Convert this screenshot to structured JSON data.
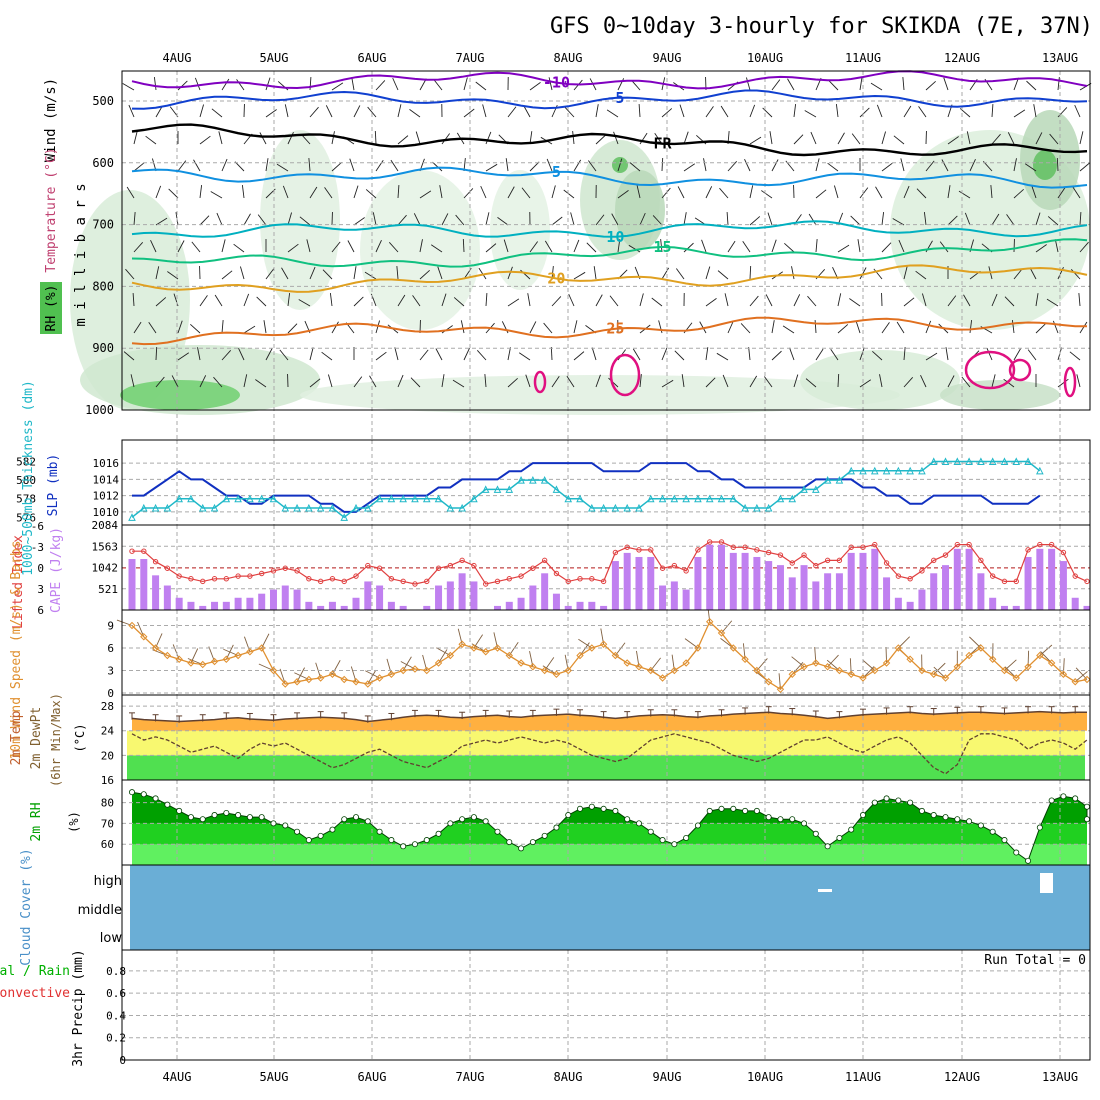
{
  "title": "GFS 0~10day 3-hourly for SKIKDA (7E, 37N)",
  "date_labels": [
    "4AUG",
    "5AUG",
    "6AUG",
    "7AUG",
    "8AUG",
    "9AUG",
    "10AUG",
    "11AUG",
    "12AUG",
    "13AUG"
  ],
  "colors": {
    "purple": "#8000c0",
    "blue": "#1040d0",
    "ltblue": "#1090e0",
    "cyan": "#00b0c0",
    "teal": "#10c080",
    "gold": "#e0a020",
    "orange": "#e07020",
    "magenta": "#e01080",
    "slp": "#1030c0",
    "thick": "#20b8c8",
    "cape": "#c080f0",
    "li": "#e04040",
    "wind": "#e09030",
    "temp": "#ffb040",
    "dew": "#f8f870",
    "green": "#50e050",
    "rh_dark": "#00a000",
    "rh_mid": "#20d020",
    "rh_light": "#60f060",
    "cloud": "#6aaed6"
  },
  "chart_data": [
    {
      "type": "contour",
      "panel": "upper_air",
      "ylabel": "m i l l i b a r s",
      "legend": [
        "Wind (m/s)",
        "Temperature (°C)",
        "RH (%)"
      ],
      "y_ticks": [
        500,
        600,
        700,
        800,
        900,
        1000
      ],
      "temperature_contours": [
        {
          "value": "-10",
          "label": "-10",
          "color": "purple",
          "level_start": 468,
          "level_end": 465
        },
        {
          "value": "-5",
          "label": "-5",
          "color": "blue",
          "level_start": 500,
          "level_end": 495
        },
        {
          "value": "FR",
          "label": "FR",
          "color": "black",
          "level_start": 550,
          "level_end": 585
        },
        {
          "value": "-5b",
          "label": "5",
          "color": "ltblue",
          "level_start": 615,
          "level_end": 632
        },
        {
          "value": "10",
          "label": "10",
          "color": "cyan",
          "level_start": 712,
          "level_end": 705
        },
        {
          "value": "15",
          "label": "15",
          "color": "teal",
          "level_start": 765,
          "level_end": 737
        },
        {
          "value": "20",
          "label": "20",
          "color": "gold",
          "level_start": 800,
          "level_end": 775
        },
        {
          "value": "25",
          "label": "25",
          "color": "orange",
          "level_start": 880,
          "level_end": 855
        }
      ],
      "contour_labels": [
        "-10",
        "5",
        "FR",
        "5",
        "10",
        "15",
        "20",
        "20",
        "25",
        "-5",
        "5",
        "10",
        "15",
        "20"
      ]
    },
    {
      "type": "line",
      "panel": "slp_thickness",
      "series": [
        {
          "name": "SLP (mb)",
          "y_ticks": [
            1010,
            1012,
            1014,
            1016
          ],
          "values": [
            1012,
            1012,
            1013,
            1014,
            1015,
            1014,
            1014,
            1013,
            1012,
            1012,
            1011,
            1011,
            1012,
            1012,
            1012,
            1012,
            1011,
            1011,
            1010,
            1010,
            1011,
            1012,
            1012,
            1012,
            1012,
            1012,
            1013,
            1013,
            1014,
            1014,
            1014,
            1014,
            1015,
            1015,
            1016,
            1016,
            1016,
            1016,
            1016,
            1016,
            1015,
            1015,
            1015,
            1015,
            1016,
            1016,
            1016,
            1016,
            1015,
            1015,
            1014,
            1014,
            1013,
            1013,
            1013,
            1013,
            1013,
            1013,
            1014,
            1014,
            1014,
            1014,
            1013,
            1013,
            1012,
            1012,
            1011,
            1011,
            1012,
            1012,
            1012,
            1012,
            1012,
            1011,
            1011,
            1011,
            1011,
            1012
          ]
        },
        {
          "name": "1000~500mb Thickness (dm)",
          "y_ticks": [
            576,
            578,
            580,
            582
          ],
          "values": [
            576,
            577,
            577,
            577,
            578,
            578,
            577,
            577,
            578,
            578,
            578,
            578,
            578,
            577,
            577,
            577,
            577,
            577,
            576,
            577,
            577,
            578,
            578,
            578,
            578,
            578,
            578,
            577,
            577,
            578,
            579,
            579,
            579,
            580,
            580,
            580,
            579,
            578,
            578,
            577,
            577,
            577,
            577,
            577,
            578,
            578,
            578,
            578,
            578,
            578,
            578,
            578,
            577,
            577,
            577,
            578,
            578,
            579,
            579,
            580,
            580,
            581,
            581,
            581,
            581,
            581,
            581,
            581,
            582,
            582,
            582,
            582,
            582,
            582,
            582,
            582,
            582,
            581
          ]
        }
      ]
    },
    {
      "type": "bar",
      "panel": "cape_li",
      "series": [
        {
          "name": "CAPE (J/kg)",
          "y_ticks": [
            521,
            1042,
            1563,
            2084
          ],
          "values": [
            1250,
            1250,
            850,
            600,
            300,
            200,
            100,
            200,
            200,
            300,
            300,
            400,
            500,
            600,
            500,
            200,
            100,
            200,
            100,
            300,
            700,
            600,
            200,
            100,
            0,
            100,
            600,
            700,
            900,
            700,
            0,
            100,
            200,
            300,
            600,
            900,
            400,
            100,
            200,
            200,
            100,
            1200,
            1400,
            1300,
            1300,
            600,
            700,
            500,
            1300,
            1600,
            1600,
            1400,
            1400,
            1300,
            1200,
            1100,
            800,
            1100,
            700,
            900,
            900,
            1400,
            1400,
            1500,
            800,
            300,
            200,
            500,
            900,
            1100,
            1500,
            1500,
            900,
            300,
            100,
            100,
            1300,
            1500,
            1500,
            1200,
            300,
            100
          ]
        },
        {
          "name": "Lifted Index",
          "y_ticks": [
            -6,
            -3,
            0,
            3,
            6
          ],
          "values": []
        }
      ]
    },
    {
      "type": "line",
      "panel": "wind",
      "ylabel": "10m Wind Speed (m/s) & Barbs",
      "y_ticks": [
        0,
        3,
        6,
        9
      ],
      "values": [
        9.0,
        7.5,
        6.0,
        5.0,
        4.5,
        4.0,
        3.8,
        4.2,
        4.5,
        5.0,
        5.5,
        6.0,
        3.0,
        1.2,
        1.5,
        1.8,
        2.0,
        2.5,
        1.8,
        1.5,
        1.2,
        2.0,
        2.5,
        3.0,
        3.2,
        3.0,
        4.0,
        5.0,
        6.5,
        6.0,
        5.5,
        6.0,
        5.0,
        4.0,
        3.5,
        3.0,
        2.5,
        3.0,
        5.0,
        6.0,
        6.5,
        5.0,
        4.0,
        3.5,
        3.0,
        2.0,
        3.0,
        4.0,
        6.0,
        9.5,
        8.0,
        6.0,
        4.5,
        3.0,
        1.5,
        0.5,
        2.5,
        3.5,
        4.0,
        3.5,
        3.0,
        2.5,
        2.0,
        3.0,
        4.0,
        6.0,
        4.5,
        3.0,
        2.5,
        2.0,
        3.5,
        5.0,
        6.0,
        4.5,
        3.0,
        2.0,
        3.5,
        5.0,
        4.0,
        2.5,
        1.5,
        1.8
      ]
    },
    {
      "type": "area",
      "panel": "temp",
      "ylabel": "(°C)",
      "legend": [
        "2m Temp",
        "2m DewPt",
        "(6hr Min/Max)"
      ],
      "y_ticks": [
        16,
        20,
        24,
        28
      ],
      "temp": [
        26.0,
        25.8,
        25.7,
        25.6,
        25.5,
        25.6,
        25.7,
        25.8,
        26.0,
        26.1,
        25.9,
        25.8,
        25.7,
        25.9,
        26.0,
        26.1,
        26.2,
        26.1,
        26.0,
        25.8,
        25.5,
        25.7,
        25.9,
        26.2,
        26.4,
        26.5,
        26.4,
        26.2,
        26.1,
        26.3,
        26.4,
        26.5,
        26.3,
        26.2,
        26.4,
        26.5,
        26.6,
        26.7,
        26.5,
        26.4,
        26.2,
        26.0,
        26.2,
        26.4,
        26.5,
        26.6,
        26.5,
        26.3,
        26.2,
        26.4,
        26.5,
        26.7,
        26.8,
        26.9,
        27.0,
        26.8,
        26.7,
        26.5,
        26.3,
        26.0,
        26.2,
        26.4,
        26.6,
        26.7,
        26.8,
        26.9,
        27.0,
        26.8,
        26.7,
        26.8,
        26.9,
        27.0,
        27.0,
        26.9,
        26.8,
        26.9,
        27.0,
        27.1,
        27.0,
        26.9,
        27.0,
        27.0
      ],
      "dewpoint": [
        23.5,
        22.5,
        23.0,
        22.5,
        21.5,
        20.5,
        21.0,
        21.5,
        20.5,
        19.5,
        21.0,
        22.0,
        21.5,
        22.0,
        21.0,
        20.0,
        19.0,
        18.0,
        18.5,
        19.5,
        20.5,
        21.0,
        20.0,
        19.0,
        18.5,
        18.0,
        19.0,
        20.0,
        21.5,
        22.0,
        22.5,
        22.0,
        22.5,
        23.0,
        22.5,
        22.0,
        22.5,
        22.0,
        21.0,
        20.0,
        19.5,
        19.0,
        19.5,
        21.0,
        22.5,
        23.0,
        23.5,
        23.0,
        22.5,
        22.0,
        21.0,
        20.0,
        19.5,
        19.0,
        19.5,
        20.5,
        21.5,
        22.5,
        22.5,
        23.0,
        22.0,
        21.0,
        20.5,
        21.5,
        22.5,
        23.0,
        22.0,
        20.0,
        18.0,
        17.0,
        18.5,
        22.5,
        23.5,
        23.5,
        23.0,
        22.5,
        21.0,
        22.0,
        22.5,
        22.0,
        21.0,
        22.5
      ]
    },
    {
      "type": "area",
      "panel": "rh",
      "ylabel": "2m RH (%)",
      "y_ticks": [
        60,
        70,
        80
      ],
      "values": [
        85,
        84,
        82,
        79,
        76,
        73,
        72,
        74,
        75,
        74,
        73,
        73,
        70,
        69,
        66,
        62,
        64,
        67,
        72,
        73,
        71,
        66,
        62,
        59,
        60,
        62,
        65,
        70,
        72,
        73,
        71,
        66,
        61,
        58,
        61,
        64,
        68,
        74,
        77,
        78,
        77,
        76,
        72,
        70,
        66,
        62,
        60,
        63,
        69,
        76,
        77,
        77,
        76,
        76,
        73,
        72,
        72,
        70,
        65,
        59,
        63,
        67,
        74,
        80,
        82,
        81,
        80,
        76,
        74,
        73,
        72,
        71,
        69,
        66,
        62,
        56,
        52,
        68,
        81,
        83,
        82,
        78,
        72
      ]
    },
    {
      "type": "other",
      "panel": "cloud",
      "ylabel": "Cloud Cover (%)",
      "levels": [
        "high",
        "middle",
        "low"
      ]
    },
    {
      "type": "bar",
      "panel": "precip",
      "ylabel": "3hr Precip (mm)",
      "legend": [
        "Total / Rain",
        "Convective"
      ],
      "y_ticks": [
        "0",
        "0.2",
        "0.4",
        "0.6",
        "0.8"
      ],
      "run_total": "Run Total = 0",
      "values": []
    }
  ]
}
